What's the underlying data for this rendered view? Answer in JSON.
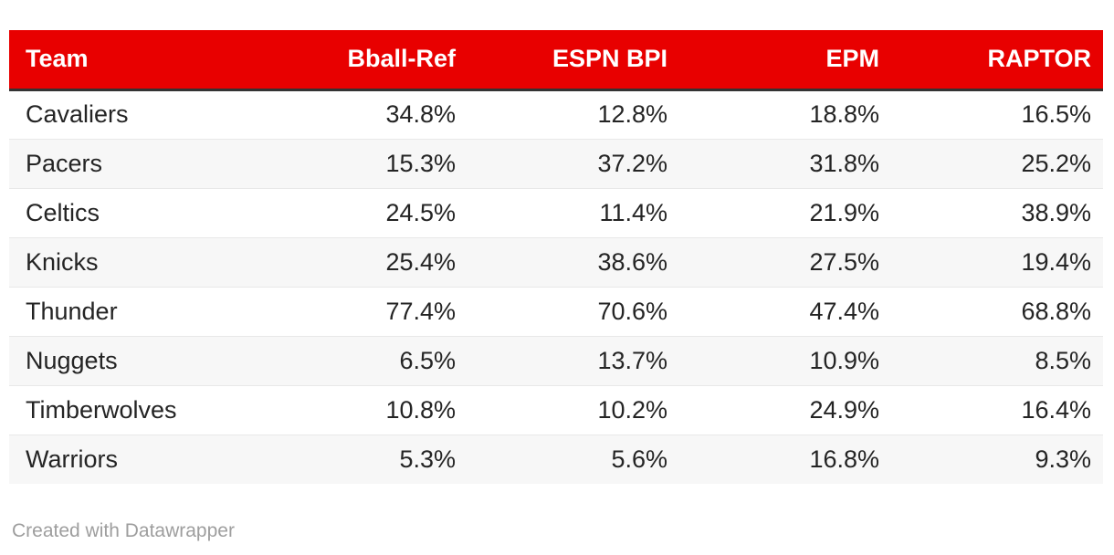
{
  "table": {
    "columns": [
      {
        "label": "Team"
      },
      {
        "label": "Bball-Ref"
      },
      {
        "label": "ESPN BPI"
      },
      {
        "label": "EPM"
      },
      {
        "label": "RAPTOR"
      }
    ],
    "rows": [
      {
        "team": "Cavaliers",
        "bball_ref": "34.8%",
        "espn_bpi": "12.8%",
        "epm": "18.8%",
        "raptor": "16.5%"
      },
      {
        "team": "Pacers",
        "bball_ref": "15.3%",
        "espn_bpi": "37.2%",
        "epm": "31.8%",
        "raptor": "25.2%"
      },
      {
        "team": "Celtics",
        "bball_ref": "24.5%",
        "espn_bpi": "11.4%",
        "epm": "21.9%",
        "raptor": "38.9%"
      },
      {
        "team": "Knicks",
        "bball_ref": "25.4%",
        "espn_bpi": "38.6%",
        "epm": "27.5%",
        "raptor": "19.4%"
      },
      {
        "team": "Thunder",
        "bball_ref": "77.4%",
        "espn_bpi": "70.6%",
        "epm": "47.4%",
        "raptor": "68.8%"
      },
      {
        "team": "Nuggets",
        "bball_ref": "6.5%",
        "espn_bpi": "13.7%",
        "epm": "10.9%",
        "raptor": "8.5%"
      },
      {
        "team": "Timberwolves",
        "bball_ref": "10.8%",
        "espn_bpi": "10.2%",
        "epm": "24.9%",
        "raptor": "16.4%"
      },
      {
        "team": "Warriors",
        "bball_ref": "5.3%",
        "espn_bpi": "5.6%",
        "epm": "16.8%",
        "raptor": "9.3%"
      }
    ]
  },
  "footer": {
    "credit": "Created with Datawrapper"
  },
  "colors": {
    "header_bg": "#e80000",
    "header_text": "#ffffff",
    "header_border": "#333333",
    "row_alt_bg": "#f7f7f7",
    "row_divider": "#e8e8e8",
    "text": "#242424",
    "credit_text": "#9e9e9e"
  },
  "chart_data": {
    "type": "table",
    "columns": [
      "Team",
      "Bball-Ref",
      "ESPN BPI",
      "EPM",
      "RAPTOR"
    ],
    "categories": [
      "Cavaliers",
      "Pacers",
      "Celtics",
      "Knicks",
      "Thunder",
      "Nuggets",
      "Timberwolves",
      "Warriors"
    ],
    "series": [
      {
        "name": "Bball-Ref",
        "values": [
          34.8,
          15.3,
          24.5,
          25.4,
          77.4,
          6.5,
          10.8,
          5.3
        ]
      },
      {
        "name": "ESPN BPI",
        "values": [
          12.8,
          37.2,
          11.4,
          38.6,
          70.6,
          13.7,
          10.2,
          5.6
        ]
      },
      {
        "name": "EPM",
        "values": [
          18.8,
          31.8,
          21.9,
          27.5,
          47.4,
          10.9,
          24.9,
          16.8
        ]
      },
      {
        "name": "RAPTOR",
        "values": [
          16.5,
          25.2,
          38.9,
          19.4,
          68.8,
          8.5,
          16.4,
          9.3
        ]
      }
    ],
    "rows": [
      [
        "Cavaliers",
        "34.8%",
        "12.8%",
        "18.8%",
        "16.5%"
      ],
      [
        "Pacers",
        "15.3%",
        "37.2%",
        "31.8%",
        "25.2%"
      ],
      [
        "Celtics",
        "24.5%",
        "11.4%",
        "21.9%",
        "38.9%"
      ],
      [
        "Knicks",
        "25.4%",
        "38.6%",
        "27.5%",
        "19.4%"
      ],
      [
        "Thunder",
        "77.4%",
        "70.6%",
        "47.4%",
        "68.8%"
      ],
      [
        "Nuggets",
        "6.5%",
        "13.7%",
        "10.9%",
        "8.5%"
      ],
      [
        "Timberwolves",
        "10.8%",
        "10.2%",
        "24.9%",
        "16.4%"
      ],
      [
        "Warriors",
        "5.3%",
        "5.6%",
        "16.8%",
        "9.3%"
      ]
    ],
    "title": "",
    "legend": "none",
    "grid": "row-dividers"
  }
}
